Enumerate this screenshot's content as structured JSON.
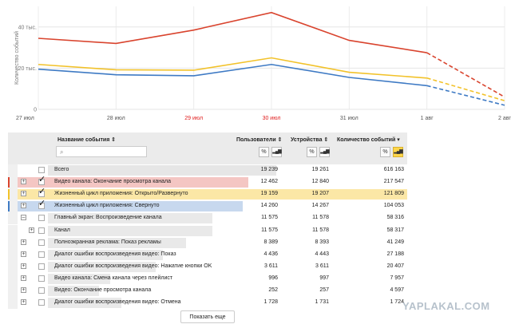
{
  "chart_data": {
    "type": "line",
    "ylabel": "Количество событий",
    "x": [
      "27 июл",
      "28 июл",
      "29 июл",
      "30 июл",
      "31 июл",
      "1 авг",
      "2 авг"
    ],
    "x_colors": [
      "#555555",
      "#555555",
      "#e02020",
      "#e02020",
      "#555555",
      "#555555",
      "#555555"
    ],
    "y_ticks": [
      {
        "v": 0,
        "label": "0"
      },
      {
        "v": 20000,
        "label": "20 тыс."
      },
      {
        "v": 40000,
        "label": "40 тыс."
      }
    ],
    "ylim": [
      0,
      50000
    ],
    "grid": true,
    "dashed_last_segment": true,
    "series": [
      {
        "color": "#d9442e",
        "values": [
          34500,
          32000,
          38500,
          47000,
          33500,
          27500,
          6000
        ]
      },
      {
        "color": "#f2c22a",
        "values": [
          21800,
          19200,
          19000,
          25000,
          18000,
          15200,
          4200
        ]
      },
      {
        "color": "#3e7ac4",
        "values": [
          19500,
          16800,
          16300,
          21800,
          15500,
          11500,
          2000
        ]
      }
    ]
  },
  "table": {
    "headers": {
      "name": "Название события ⇕",
      "users": "Пользователи ⇕",
      "devices": "Устройства ⇕",
      "events": "Количество событий ▾"
    },
    "btn_percent": "%",
    "btn_bars": "▂▄▆",
    "search_icon": "⌕",
    "rows": [
      {
        "name": "Всего",
        "users": "19 239",
        "devices": "19 261",
        "events": "616 163",
        "expander": "",
        "indent": 0,
        "checked": false,
        "bg": "",
        "bar": "",
        "w": 1.0
      },
      {
        "name": "Видео канала: Окончание просмотра канала",
        "users": "12 462",
        "devices": "12 840",
        "events": "217 547",
        "expander": "+",
        "indent": 0,
        "checked": true,
        "bg": "#f4c6c3",
        "bar": "#d9442e",
        "w": 0.85
      },
      {
        "name": "Жизненный цикл приложения: Открыто/Развернуто",
        "users": "19 159",
        "devices": "19 207",
        "events": "121 809",
        "expander": "+",
        "indent": 0,
        "checked": true,
        "bg": "#fbe7a6",
        "bar": "#f2c22a",
        "w": 1.0
      },
      {
        "name": "Жизненный цикл приложения: Свернуто",
        "users": "14 260",
        "devices": "14 267",
        "events": "104 053",
        "expander": "+",
        "indent": 0,
        "checked": true,
        "bg": "#c7d8ee",
        "bar": "#3e7ac4",
        "w": 0.82
      },
      {
        "name": "Главный экран: Воспроизведение канала",
        "users": "11 575",
        "devices": "11 578",
        "events": "58 316",
        "expander": "–",
        "indent": 0,
        "checked": false,
        "bg": "",
        "bar": "",
        "w": 0.66
      },
      {
        "name": "Канал",
        "users": "11 575",
        "devices": "11 578",
        "events": "58 317",
        "expander": "+",
        "indent": 1,
        "checked": false,
        "bg": "",
        "bar": "",
        "w": 0.66
      },
      {
        "name": "Полноэкранная реклама: Показ рекламы",
        "users": "8 389",
        "devices": "8 393",
        "events": "41 249",
        "expander": "+",
        "indent": 0,
        "checked": false,
        "bg": "",
        "bar": "",
        "w": 0.52
      },
      {
        "name": "Диалог ошибки воспроизведения видео: Показ",
        "users": "4 436",
        "devices": "4 443",
        "events": "27 188",
        "expander": "+",
        "indent": 0,
        "checked": false,
        "bg": "",
        "bar": "",
        "w": 0.4
      },
      {
        "name": "Диалог ошибки воспроизведения видео: Нажатие кнопки OK",
        "users": "3 611",
        "devices": "3 611",
        "events": "20 407",
        "expander": "+",
        "indent": 0,
        "checked": false,
        "bg": "",
        "bar": "",
        "w": 0.36
      },
      {
        "name": "Видео канала: Смена канала через плейлист",
        "users": "996",
        "devices": "997",
        "events": "7 957",
        "expander": "+",
        "indent": 0,
        "checked": false,
        "bg": "",
        "bar": "",
        "w": 0.12
      },
      {
        "name": "Видео: Окончание просмотра канала",
        "users": "252",
        "devices": "257",
        "events": "4 597",
        "expander": "+",
        "indent": 0,
        "checked": false,
        "bg": "",
        "bar": "",
        "w": 0.06
      },
      {
        "name": "Диалог ошибки воспроизведения видео: Отмена",
        "users": "1 728",
        "devices": "1 731",
        "events": "1 724",
        "expander": "+",
        "indent": 0,
        "checked": false,
        "bg": "",
        "bar": "",
        "w": 0.18
      }
    ]
  },
  "show_more": "Показать еще",
  "watermark": "YAPLAKAL.COM"
}
